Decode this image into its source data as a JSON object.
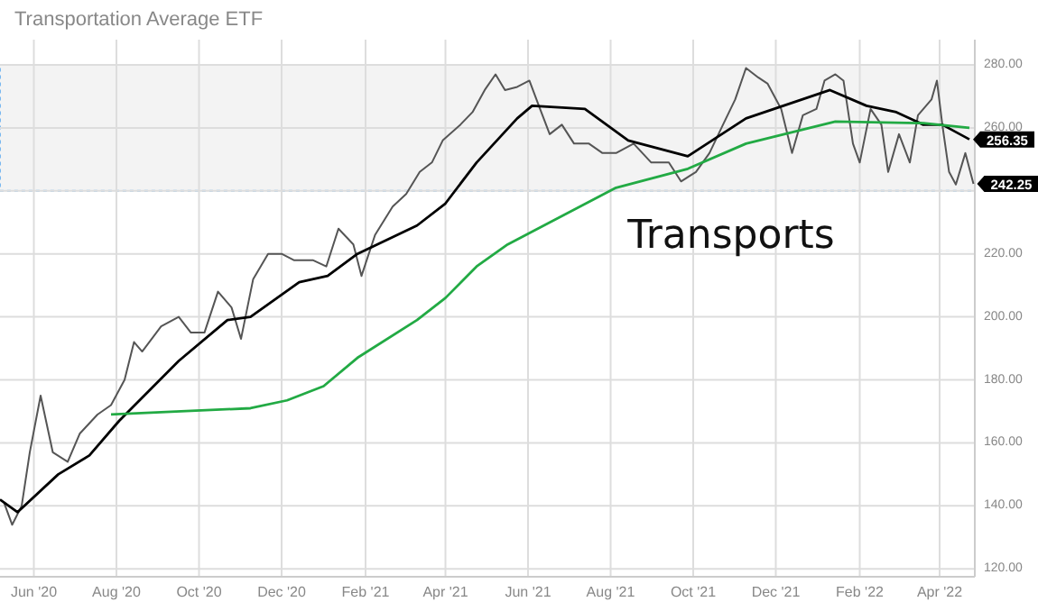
{
  "chart_data": {
    "type": "line",
    "title": "Transportation Average ETF",
    "xlim": [
      "2020-05-07",
      "2022-04-27"
    ],
    "ylim": [
      117.5,
      288
    ],
    "xticks": [
      {
        "value": "2020-06-01",
        "label": "Jun '20"
      },
      {
        "value": "2020-08-01",
        "label": "Aug '20"
      },
      {
        "value": "2020-10-01",
        "label": "Oct '20"
      },
      {
        "value": "2020-12-01",
        "label": "Dec '20"
      },
      {
        "value": "2021-02-01",
        "label": "Feb '21"
      },
      {
        "value": "2021-04-01",
        "label": "Apr '21"
      },
      {
        "value": "2021-06-01",
        "label": "Jun '21"
      },
      {
        "value": "2021-08-01",
        "label": "Aug '21"
      },
      {
        "value": "2021-10-01",
        "label": "Oct '21"
      },
      {
        "value": "2021-12-01",
        "label": "Dec '21"
      },
      {
        "value": "2022-02-01",
        "label": "Feb '22"
      },
      {
        "value": "2022-04-01",
        "label": "Apr '22"
      }
    ],
    "yticks": [
      {
        "value": 120,
        "label": "120.00"
      },
      {
        "value": 140,
        "label": "140.00"
      },
      {
        "value": 160,
        "label": "160.00"
      },
      {
        "value": 180,
        "label": "180.00"
      },
      {
        "value": 200,
        "label": "200.00"
      },
      {
        "value": 220,
        "label": "220.00"
      },
      {
        "value": 240,
        "label": null
      },
      {
        "value": 260,
        "label": "260.00"
      },
      {
        "value": 280,
        "label": "280.00"
      }
    ],
    "grid": true,
    "series": [
      {
        "color": "#555555",
        "x": [
          "2020-05-10",
          "2020-05-16",
          "2020-05-23",
          "2020-05-29",
          "2020-06-06",
          "2020-06-15",
          "2020-06-26",
          "2020-07-05",
          "2020-07-18",
          "2020-07-28",
          "2020-08-07",
          "2020-08-14",
          "2020-08-20",
          "2020-09-03",
          "2020-09-16",
          "2020-09-25",
          "2020-10-05",
          "2020-10-15",
          "2020-10-25",
          "2020-11-01",
          "2020-11-10",
          "2020-11-21",
          "2020-12-01",
          "2020-12-10",
          "2020-12-24",
          "2021-01-03",
          "2021-01-12",
          "2021-01-23",
          "2021-01-29",
          "2021-02-08",
          "2021-02-21",
          "2021-03-03",
          "2021-03-13",
          "2021-03-22",
          "2021-03-30",
          "2021-04-12",
          "2021-04-21",
          "2021-04-30",
          "2021-05-08",
          "2021-05-15",
          "2021-05-24",
          "2021-06-02",
          "2021-06-09",
          "2021-06-17",
          "2021-06-26",
          "2021-07-05",
          "2021-07-16",
          "2021-07-26",
          "2021-08-05",
          "2021-08-18",
          "2021-08-31",
          "2021-09-13",
          "2021-09-22",
          "2021-10-03",
          "2021-10-13",
          "2021-10-23",
          "2021-11-01",
          "2021-11-09",
          "2021-11-18",
          "2021-11-25",
          "2021-12-05",
          "2021-12-13",
          "2021-12-21",
          "2021-12-31",
          "2022-01-06",
          "2022-01-14",
          "2022-01-20",
          "2022-01-27",
          "2022-02-01",
          "2022-02-09",
          "2022-02-17",
          "2022-02-22",
          "2022-03-02",
          "2022-03-10",
          "2022-03-16",
          "2022-03-26",
          "2022-03-30",
          "2022-04-03",
          "2022-04-08",
          "2022-04-13",
          "2022-04-20",
          "2022-04-26"
        ],
        "values": [
          141,
          134,
          140,
          157,
          175,
          157,
          154,
          163,
          169,
          172,
          180,
          192,
          189,
          197,
          200,
          195,
          195,
          208,
          203,
          193,
          212,
          220,
          220,
          218,
          218,
          216,
          228,
          223,
          213,
          226,
          235,
          239,
          246,
          249,
          256,
          261,
          265,
          272,
          277,
          272,
          273,
          275,
          267,
          258,
          261,
          255,
          255,
          252,
          252,
          255,
          249,
          249,
          243,
          246,
          252,
          261,
          269,
          279,
          276,
          274,
          266,
          252,
          264,
          266,
          275,
          277,
          275,
          255,
          249,
          266,
          261,
          246,
          258,
          249,
          264,
          269,
          275,
          261,
          246,
          242,
          252,
          242.25
        ]
      },
      {
        "color": "#000000",
        "x": [
          "2020-05-07",
          "2020-05-20",
          "2020-06-19",
          "2020-07-12",
          "2020-08-03",
          "2020-09-16",
          "2020-10-22",
          "2020-11-08",
          "2020-12-14",
          "2021-01-04",
          "2021-01-26",
          "2021-03-11",
          "2021-04-01",
          "2021-04-24",
          "2021-05-24",
          "2021-06-04",
          "2021-07-13",
          "2021-08-14",
          "2021-09-27",
          "2021-11-09",
          "2022-01-10",
          "2022-02-06",
          "2022-02-28",
          "2022-03-20",
          "2022-04-03",
          "2022-04-23"
        ],
        "values": [
          142,
          138,
          150,
          156,
          167,
          186,
          199,
          200,
          211,
          213,
          220,
          229,
          236,
          249,
          263,
          267,
          266,
          256,
          251,
          263,
          272,
          267,
          265,
          261,
          261,
          256.35
        ]
      },
      {
        "color": "#22aa44",
        "x": [
          "2020-07-28",
          "2020-11-08",
          "2020-12-05",
          "2021-01-01",
          "2021-01-26",
          "2021-03-11",
          "2021-04-01",
          "2021-04-24",
          "2021-05-17",
          "2021-08-05",
          "2021-09-27",
          "2021-11-09",
          "2022-01-14",
          "2022-03-20",
          "2022-04-23"
        ],
        "values": [
          169,
          171,
          173.5,
          178,
          187,
          199,
          206,
          216,
          223,
          241,
          247,
          255,
          262,
          261.5,
          260
        ]
      }
    ],
    "bands": [
      {
        "axis": "y",
        "from": 240,
        "to": 280,
        "color": "#f3f3f3"
      }
    ],
    "annotations": [
      "Transports",
      {
        "text": "256.35",
        "x": "2022-04-23",
        "y": 256.35
      },
      {
        "text": "242.25",
        "x": "2022-04-26",
        "y": 242.25
      }
    ]
  }
}
